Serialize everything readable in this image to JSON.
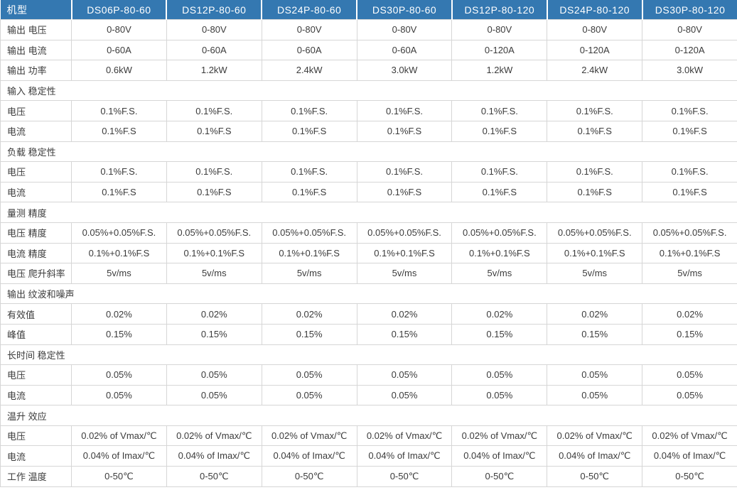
{
  "colors": {
    "header_bg": "#3478b1",
    "header_text": "#ffffff",
    "border": "#d6d6d6",
    "body_text": "#3b3b3b",
    "background": "#ffffff"
  },
  "table": {
    "header": {
      "label": "机型",
      "models": [
        "DS06P-80-60",
        "DS12P-80-60",
        "DS24P-80-60",
        "DS30P-80-60",
        "DS12P-80-120",
        "DS24P-80-120",
        "DS30P-80-120"
      ]
    },
    "rows": [
      {
        "type": "data",
        "label": "输出 电压",
        "values": [
          "0-80V",
          "0-80V",
          "0-80V",
          "0-80V",
          "0-80V",
          "0-80V",
          "0-80V"
        ]
      },
      {
        "type": "data",
        "label": "输出 电流",
        "values": [
          "0-60A",
          "0-60A",
          "0-60A",
          "0-60A",
          "0-120A",
          "0-120A",
          "0-120A"
        ]
      },
      {
        "type": "data",
        "label": "输出 功率",
        "values": [
          "0.6kW",
          "1.2kW",
          "2.4kW",
          "3.0kW",
          "1.2kW",
          "2.4kW",
          "3.0kW"
        ]
      },
      {
        "type": "section",
        "label": "输入 稳定性"
      },
      {
        "type": "data",
        "label": "电压",
        "values": [
          "0.1%F.S.",
          "0.1%F.S.",
          "0.1%F.S.",
          "0.1%F.S.",
          "0.1%F.S.",
          "0.1%F.S.",
          "0.1%F.S."
        ]
      },
      {
        "type": "data",
        "label": "电流",
        "values": [
          "0.1%F.S",
          "0.1%F.S",
          "0.1%F.S",
          "0.1%F.S",
          "0.1%F.S",
          "0.1%F.S",
          "0.1%F.S"
        ]
      },
      {
        "type": "section",
        "label": "负载 稳定性"
      },
      {
        "type": "data",
        "label": "电压",
        "values": [
          "0.1%F.S.",
          "0.1%F.S.",
          "0.1%F.S.",
          "0.1%F.S.",
          "0.1%F.S.",
          "0.1%F.S.",
          "0.1%F.S."
        ]
      },
      {
        "type": "data",
        "label": "电流",
        "values": [
          "0.1%F.S",
          "0.1%F.S",
          "0.1%F.S",
          "0.1%F.S",
          "0.1%F.S",
          "0.1%F.S",
          "0.1%F.S"
        ]
      },
      {
        "type": "section",
        "label": "量测 精度"
      },
      {
        "type": "data",
        "label": "电压 精度",
        "values": [
          "0.05%+0.05%F.S.",
          "0.05%+0.05%F.S.",
          "0.05%+0.05%F.S.",
          "0.05%+0.05%F.S.",
          "0.05%+0.05%F.S.",
          "0.05%+0.05%F.S.",
          "0.05%+0.05%F.S."
        ]
      },
      {
        "type": "data",
        "label": "电流 精度",
        "values": [
          "0.1%+0.1%F.S",
          "0.1%+0.1%F.S",
          "0.1%+0.1%F.S",
          "0.1%+0.1%F.S",
          "0.1%+0.1%F.S",
          "0.1%+0.1%F.S",
          "0.1%+0.1%F.S"
        ]
      },
      {
        "type": "data",
        "label": "电压 爬升斜率",
        "values": [
          "5v/ms",
          "5v/ms",
          "5v/ms",
          "5v/ms",
          "5v/ms",
          "5v/ms",
          "5v/ms"
        ]
      },
      {
        "type": "section",
        "label": "输出 纹波和噪声"
      },
      {
        "type": "data",
        "label": "有效值",
        "values": [
          "0.02%",
          "0.02%",
          "0.02%",
          "0.02%",
          "0.02%",
          "0.02%",
          "0.02%"
        ]
      },
      {
        "type": "data",
        "label": "峰值",
        "values": [
          "0.15%",
          "0.15%",
          "0.15%",
          "0.15%",
          "0.15%",
          "0.15%",
          "0.15%"
        ]
      },
      {
        "type": "section",
        "label": "长时间 稳定性"
      },
      {
        "type": "data",
        "label": "电压",
        "values": [
          "0.05%",
          "0.05%",
          "0.05%",
          "0.05%",
          "0.05%",
          "0.05%",
          "0.05%"
        ]
      },
      {
        "type": "data",
        "label": "电流",
        "values": [
          "0.05%",
          "0.05%",
          "0.05%",
          "0.05%",
          "0.05%",
          "0.05%",
          "0.05%"
        ]
      },
      {
        "type": "section",
        "label": "温升 效应"
      },
      {
        "type": "data",
        "label": "电压",
        "values": [
          "0.02% of Vmax/℃",
          "0.02% of Vmax/℃",
          "0.02% of Vmax/℃",
          "0.02% of Vmax/℃",
          "0.02% of Vmax/℃",
          "0.02% of Vmax/℃",
          "0.02% of Vmax/℃"
        ]
      },
      {
        "type": "data",
        "label": "电流",
        "values": [
          "0.04% of Imax/℃",
          "0.04% of Imax/℃",
          "0.04% of Imax/℃",
          "0.04% of Imax/℃",
          "0.04% of Imax/℃",
          "0.04% of Imax/℃",
          "0.04% of Imax/℃"
        ]
      },
      {
        "type": "data",
        "label": "工作 温度",
        "values": [
          "0-50℃",
          "0-50℃",
          "0-50℃",
          "0-50℃",
          "0-50℃",
          "0-50℃",
          "0-50℃"
        ]
      }
    ]
  }
}
